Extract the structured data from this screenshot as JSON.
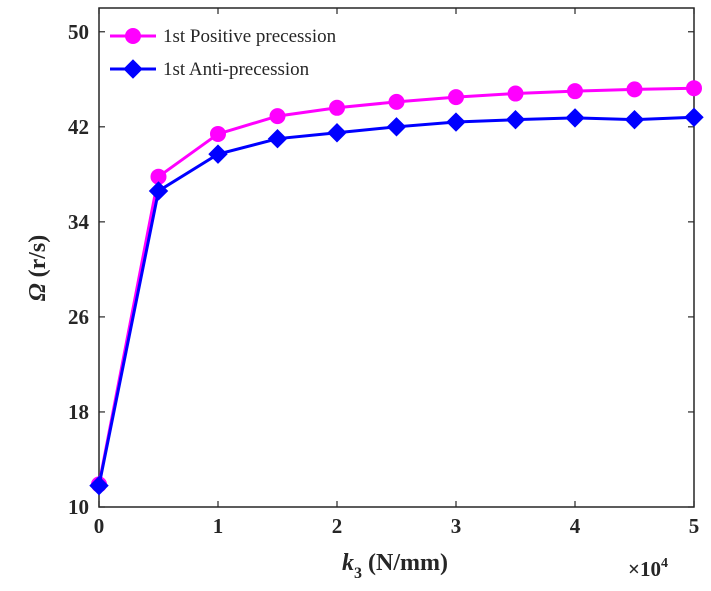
{
  "chart_data": {
    "type": "line",
    "x": [
      0,
      5000,
      10000,
      15000,
      20000,
      25000,
      30000,
      35000,
      40000,
      45000,
      50000
    ],
    "series": [
      {
        "name": "1st Positive precession",
        "color": "#ff00ff",
        "marker": "circle",
        "values": [
          11.9,
          37.8,
          41.4,
          42.9,
          43.6,
          44.1,
          44.5,
          44.8,
          45.0,
          45.15,
          45.25
        ]
      },
      {
        "name": "1st Anti-precession",
        "color": "#0000ff",
        "marker": "diamond",
        "values": [
          11.8,
          36.6,
          39.7,
          41.0,
          41.5,
          42.0,
          42.4,
          42.6,
          42.75,
          42.6,
          42.8
        ]
      }
    ],
    "xlim": [
      0,
      50000
    ],
    "ylim": [
      10,
      52
    ],
    "x_ticks": [
      0,
      10000,
      20000,
      30000,
      40000,
      50000
    ],
    "x_tick_labels": [
      "0",
      "1",
      "2",
      "3",
      "4",
      "5"
    ],
    "y_ticks": [
      10,
      18,
      26,
      34,
      42,
      50
    ],
    "y_tick_labels": [
      "10",
      "18",
      "26",
      "34",
      "42",
      "50"
    ],
    "x_multiplier": {
      "base": "×10",
      "exponent": "4"
    },
    "xlabel": {
      "main": "k",
      "sub": "3",
      "unit": " (N/mm)"
    },
    "ylabel": {
      "symbol": "Ω",
      "unit": " (r/s)"
    },
    "grid": false,
    "legend_position": "top-left"
  }
}
